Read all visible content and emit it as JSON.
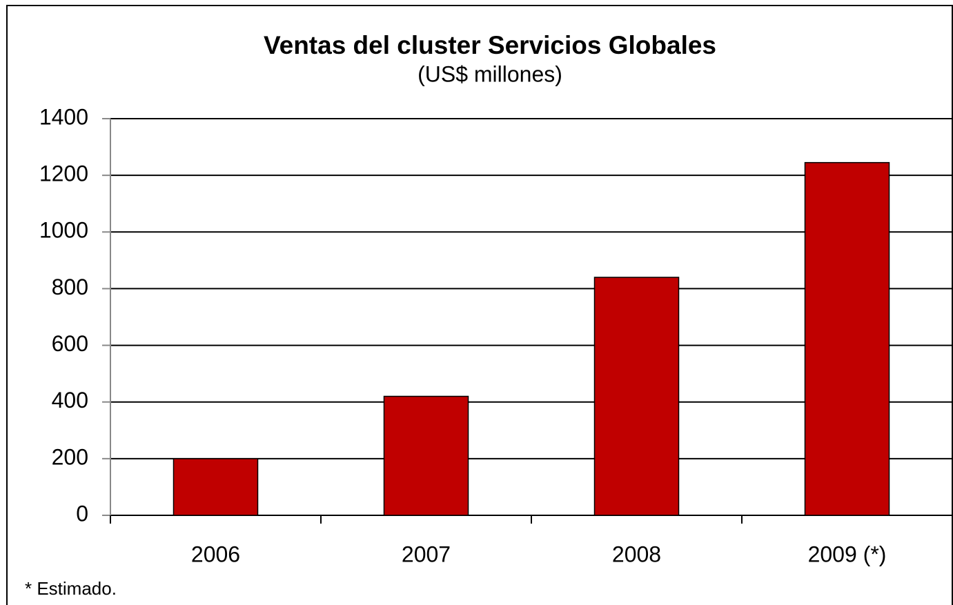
{
  "chart_data": {
    "type": "bar",
    "title": "Ventas del cluster Servicios Globales",
    "subtitle": "(US$ millones)",
    "categories": [
      "2006",
      "2007",
      "2008",
      "2009 (*)"
    ],
    "values": [
      200,
      420,
      840,
      1245
    ],
    "color": "#c00000",
    "ylim": [
      0,
      1400
    ],
    "yticks": [
      0,
      200,
      400,
      600,
      800,
      1000,
      1200,
      1400
    ],
    "grid": true,
    "note": "* Estimado."
  }
}
